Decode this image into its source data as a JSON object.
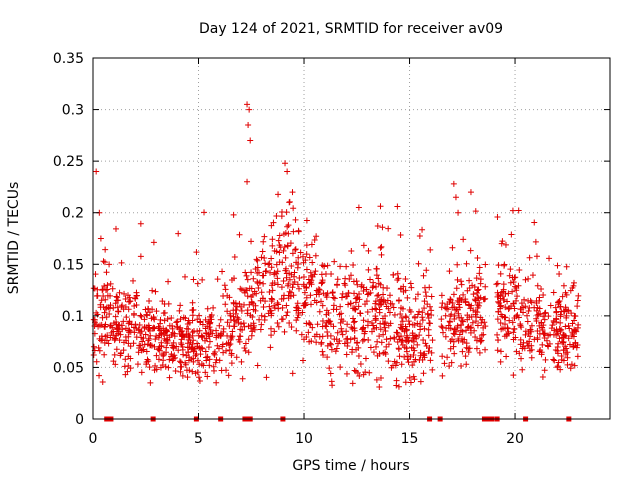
{
  "chart_data": {
    "type": "scatter",
    "title": "Day 124 of 2021, SRMTID for receiver av09",
    "xlabel": "GPS time / hours",
    "ylabel": "SRMTID / TECUs",
    "xlim": [
      0,
      24.5
    ],
    "ylim": [
      0,
      0.35
    ],
    "xticks": [
      0,
      5,
      10,
      15,
      20
    ],
    "xtick_labels": [
      "0",
      "5",
      "10",
      "15",
      "20"
    ],
    "yticks": [
      0,
      0.05,
      0.1,
      0.15,
      0.2,
      0.25,
      0.3,
      0.35
    ],
    "ytick_labels": [
      "0",
      "0.05",
      "0.1",
      "0.15",
      "0.2",
      "0.25",
      "0.3",
      "0.35"
    ],
    "grid": true,
    "marker": "+",
    "color": "#e00000",
    "series": [
      {
        "name": "SRMTID",
        "points_summary": "approx. 1800 samples spanning 0–23 h, scattered mostly between 0.03 and 0.16 TECU",
        "profile": [
          {
            "x": 0.5,
            "mean": 0.1,
            "spread": 0.045
          },
          {
            "x": 1.5,
            "mean": 0.085,
            "spread": 0.035
          },
          {
            "x": 2.5,
            "mean": 0.085,
            "spread": 0.035
          },
          {
            "x": 3.5,
            "mean": 0.075,
            "spread": 0.03
          },
          {
            "x": 4.5,
            "mean": 0.075,
            "spread": 0.03
          },
          {
            "x": 5.5,
            "mean": 0.08,
            "spread": 0.035
          },
          {
            "x": 6.5,
            "mean": 0.085,
            "spread": 0.035
          },
          {
            "x": 7.5,
            "mean": 0.11,
            "spread": 0.045
          },
          {
            "x": 8.5,
            "mean": 0.13,
            "spread": 0.05
          },
          {
            "x": 9.5,
            "mean": 0.14,
            "spread": 0.05
          },
          {
            "x": 10.5,
            "mean": 0.11,
            "spread": 0.05
          },
          {
            "x": 11.5,
            "mean": 0.09,
            "spread": 0.045
          },
          {
            "x": 12.5,
            "mean": 0.1,
            "spread": 0.05
          },
          {
            "x": 13.5,
            "mean": 0.11,
            "spread": 0.05
          },
          {
            "x": 14.5,
            "mean": 0.09,
            "spread": 0.045
          },
          {
            "x": 15.5,
            "mean": 0.08,
            "spread": 0.035
          },
          {
            "x": 17.5,
            "mean": 0.1,
            "spread": 0.04
          },
          {
            "x": 19.5,
            "mean": 0.11,
            "spread": 0.04
          },
          {
            "x": 20.5,
            "mean": 0.1,
            "spread": 0.04
          },
          {
            "x": 21.5,
            "mean": 0.085,
            "spread": 0.035
          },
          {
            "x": 22.5,
            "mean": 0.09,
            "spread": 0.035
          }
        ],
        "gaps": [
          [
            16.1,
            16.5
          ],
          [
            18.6,
            19.1
          ]
        ],
        "outliers": [
          {
            "x": 0.15,
            "y": 0.24
          },
          {
            "x": 0.3,
            "y": 0.2
          },
          {
            "x": 7.3,
            "y": 0.305
          },
          {
            "x": 7.4,
            "y": 0.3
          },
          {
            "x": 7.35,
            "y": 0.285
          },
          {
            "x": 7.45,
            "y": 0.27
          },
          {
            "x": 7.3,
            "y": 0.23
          },
          {
            "x": 9.1,
            "y": 0.248
          },
          {
            "x": 9.2,
            "y": 0.24
          },
          {
            "x": 9.3,
            "y": 0.21
          },
          {
            "x": 12.6,
            "y": 0.205
          },
          {
            "x": 17.1,
            "y": 0.228
          },
          {
            "x": 17.2,
            "y": 0.215
          },
          {
            "x": 17.3,
            "y": 0.2
          },
          {
            "x": 19.9,
            "y": 0.202
          }
        ],
        "zero_level_markers_x": [
          0.65,
          0.75,
          0.85,
          2.85,
          4.9,
          6.05,
          7.2,
          7.4,
          7.45,
          9.0,
          15.95,
          16.45,
          18.55,
          18.7,
          18.8,
          18.9,
          19.15,
          20.5,
          22.55
        ]
      }
    ]
  }
}
